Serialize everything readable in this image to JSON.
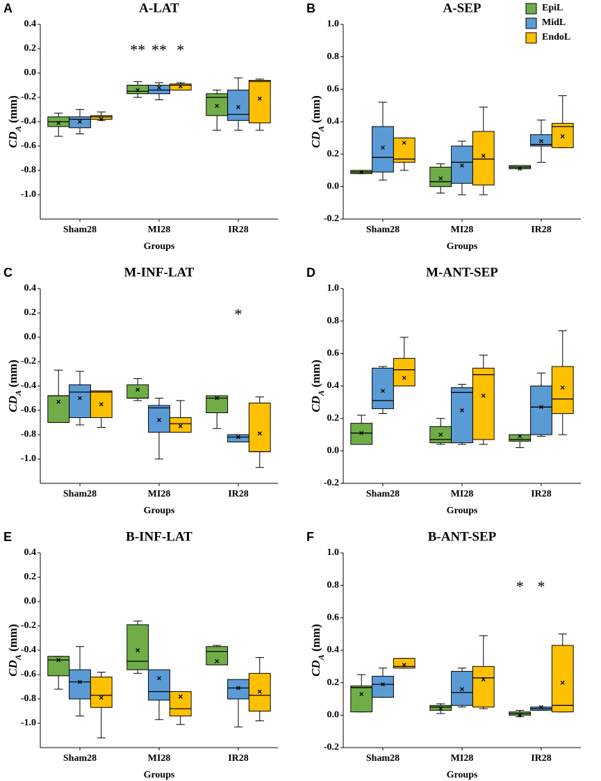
{
  "legend": [
    {
      "name": "EpiL",
      "color": "#70ad47"
    },
    {
      "name": "MidL",
      "color": "#5b9bd5"
    },
    {
      "name": "EndoL",
      "color": "#ffc000"
    }
  ],
  "chart_data": [
    {
      "type": "box",
      "letter": "A",
      "title": "A-LAT",
      "xlabel": "Groups",
      "ylabel": {
        "main": "CD",
        "sub": "A",
        "unit": " (mm)"
      },
      "categories": [
        "Sham28",
        "MI28",
        "IR28"
      ],
      "ylim": [
        -1.2,
        0.4
      ],
      "yticks": [
        {
          "value": -1,
          "label": "-1.0"
        },
        -0.8,
        -0.6,
        -0.4,
        -0.2,
        {
          "value": 0,
          "label": "0.0"
        },
        0.2,
        0.4
      ],
      "series": [
        {
          "values": [
            {
              "min": -0.52,
              "q1": -0.44,
              "median": -0.4,
              "q3": -0.36,
              "max": -0.33,
              "mean": -0.41
            },
            {
              "min": -0.2,
              "q1": -0.17,
              "median": -0.15,
              "q3": -0.1,
              "max": -0.07,
              "mean": -0.14
            },
            {
              "min": -0.47,
              "q1": -0.35,
              "median": -0.2,
              "q3": -0.17,
              "max": -0.14,
              "mean": -0.27
            }
          ]
        },
        {
          "values": [
            {
              "min": -0.5,
              "q1": -0.45,
              "median": -0.38,
              "q3": -0.36,
              "max": -0.3,
              "mean": -0.4
            },
            {
              "min": -0.22,
              "q1": -0.17,
              "median": -0.14,
              "q3": -0.1,
              "max": -0.08,
              "mean": -0.12
            },
            {
              "min": -0.47,
              "q1": -0.39,
              "median": -0.34,
              "q3": -0.14,
              "max": -0.04,
              "mean": -0.28
            }
          ]
        },
        {
          "values": [
            {
              "min": -0.39,
              "q1": -0.38,
              "median": -0.36,
              "q3": -0.35,
              "max": -0.32,
              "mean": -0.38
            },
            {
              "min": -0.14,
              "q1": -0.14,
              "median": -0.1,
              "q3": -0.09,
              "max": -0.08,
              "mean": -0.11
            },
            {
              "min": -0.47,
              "q1": -0.41,
              "median": -0.07,
              "q3": -0.06,
              "max": -0.05,
              "mean": -0.21
            }
          ]
        }
      ],
      "annotations": [
        {
          "text": "**",
          "category": "MI28",
          "series": "EpiL",
          "y": 0.2
        },
        {
          "text": "**",
          "category": "MI28",
          "series": "MidL",
          "y": 0.2
        },
        {
          "text": "*",
          "category": "MI28",
          "series": "EndoL",
          "y": 0.2
        }
      ]
    },
    {
      "type": "box",
      "letter": "B",
      "title": "A-SEP",
      "xlabel": "Groups",
      "ylabel": {
        "main": "CD",
        "sub": "A",
        "unit": " (mm)"
      },
      "categories": [
        "Sham28",
        "MI28",
        "IR28"
      ],
      "ylim": [
        -0.2,
        1.0
      ],
      "yticks": [
        -0.2,
        {
          "value": 0,
          "label": "0.0"
        },
        0.2,
        0.4,
        0.6,
        0.8,
        {
          "value": 1,
          "label": "1.0"
        }
      ],
      "series": [
        {
          "values": [
            {
              "min": 0.08,
              "q1": 0.08,
              "median": 0.09,
              "q3": 0.1,
              "max": 0.1,
              "mean": 0.09
            },
            {
              "min": -0.04,
              "q1": 0.0,
              "median": 0.03,
              "q3": 0.12,
              "max": 0.14,
              "mean": 0.05
            },
            {
              "min": 0.11,
              "q1": 0.11,
              "median": 0.12,
              "q3": 0.13,
              "max": 0.13,
              "mean": 0.11
            }
          ]
        },
        {
          "values": [
            {
              "min": 0.04,
              "q1": 0.09,
              "median": 0.18,
              "q3": 0.37,
              "max": 0.52,
              "mean": 0.24
            },
            {
              "min": -0.05,
              "q1": 0.02,
              "median": 0.15,
              "q3": 0.25,
              "max": 0.28,
              "mean": 0.13
            },
            {
              "min": 0.15,
              "q1": 0.25,
              "median": 0.26,
              "q3": 0.32,
              "max": 0.41,
              "mean": 0.28
            }
          ]
        },
        {
          "values": [
            {
              "min": 0.1,
              "q1": 0.15,
              "median": 0.17,
              "q3": 0.3,
              "max": 0.3,
              "mean": 0.27
            },
            {
              "min": -0.05,
              "q1": 0.01,
              "median": 0.17,
              "q3": 0.34,
              "max": 0.49,
              "mean": 0.19
            },
            {
              "min": 0.24,
              "q1": 0.24,
              "median": 0.37,
              "q3": 0.39,
              "max": 0.56,
              "mean": 0.31
            }
          ]
        }
      ],
      "annotations": []
    },
    {
      "type": "box",
      "letter": "C",
      "title": "M-INF-LAT",
      "xlabel": "Groups",
      "ylabel": {
        "main": "CD",
        "sub": "A",
        "unit": " (mm)"
      },
      "categories": [
        "Sham28",
        "MI28",
        "IR28"
      ],
      "ylim": [
        -1.2,
        0.4
      ],
      "yticks": [
        {
          "value": -1,
          "label": "-1.0"
        },
        -0.8,
        -0.6,
        -0.4,
        -0.2,
        {
          "value": 0,
          "label": "0.0"
        },
        0.2,
        0.4
      ],
      "series": [
        {
          "values": [
            {
              "min": -0.7,
              "q1": -0.7,
              "median": -0.48,
              "q3": -0.48,
              "max": -0.27,
              "mean": -0.53
            },
            {
              "min": -0.52,
              "q1": -0.5,
              "median": -0.5,
              "q3": -0.39,
              "max": -0.34,
              "mean": -0.43
            },
            {
              "min": -0.75,
              "q1": -0.62,
              "median": -0.5,
              "q3": -0.48,
              "max": -0.48,
              "mean": -0.5
            }
          ]
        },
        {
          "values": [
            {
              "min": -0.72,
              "q1": -0.66,
              "median": -0.45,
              "q3": -0.39,
              "max": -0.28,
              "mean": -0.5
            },
            {
              "min": -1.0,
              "q1": -0.78,
              "median": -0.58,
              "q3": -0.56,
              "max": -0.5,
              "mean": -0.68
            },
            {
              "min": -0.86,
              "q1": -0.86,
              "median": -0.82,
              "q3": -0.8,
              "max": -0.8,
              "mean": -0.82
            }
          ]
        },
        {
          "values": [
            {
              "min": -0.74,
              "q1": -0.66,
              "median": -0.45,
              "q3": -0.44,
              "max": -0.44,
              "mean": -0.55
            },
            {
              "min": -0.78,
              "q1": -0.78,
              "median": -0.71,
              "q3": -0.66,
              "max": -0.52,
              "mean": -0.73
            },
            {
              "min": -1.07,
              "q1": -0.94,
              "median": -0.94,
              "q3": -0.54,
              "max": -0.49,
              "mean": -0.79
            }
          ]
        }
      ],
      "annotations": [
        {
          "text": "*",
          "category": "IR28",
          "series": "MidL",
          "y": 0.2
        }
      ]
    },
    {
      "type": "box",
      "letter": "D",
      "title": "M-ANT-SEP",
      "xlabel": "Groups",
      "ylabel": {
        "main": "CD",
        "sub": "A",
        "unit": " (mm)"
      },
      "categories": [
        "Sham28",
        "MI28",
        "IR28"
      ],
      "ylim": [
        -0.2,
        1.0
      ],
      "yticks": [
        -0.2,
        {
          "value": 0,
          "label": "0.0"
        },
        0.2,
        0.4,
        0.6,
        0.8,
        {
          "value": 1,
          "label": "1.0"
        }
      ],
      "series": [
        {
          "values": [
            {
              "min": 0.04,
              "q1": 0.04,
              "median": 0.11,
              "q3": 0.17,
              "max": 0.22,
              "mean": 0.11
            },
            {
              "min": 0.04,
              "q1": 0.05,
              "median": 0.07,
              "q3": 0.15,
              "max": 0.2,
              "mean": 0.1
            },
            {
              "min": 0.02,
              "q1": 0.06,
              "median": 0.07,
              "q3": 0.1,
              "max": 0.1,
              "mean": 0.09
            }
          ]
        },
        {
          "values": [
            {
              "min": 0.23,
              "q1": 0.26,
              "median": 0.31,
              "q3": 0.51,
              "max": 0.52,
              "mean": 0.37
            },
            {
              "min": 0.04,
              "q1": 0.05,
              "median": 0.36,
              "q3": 0.39,
              "max": 0.41,
              "mean": 0.25
            },
            {
              "min": 0.09,
              "q1": 0.1,
              "median": 0.27,
              "q3": 0.4,
              "max": 0.48,
              "mean": 0.27
            }
          ]
        },
        {
          "values": [
            {
              "min": 0.4,
              "q1": 0.4,
              "median": 0.5,
              "q3": 0.57,
              "max": 0.7,
              "mean": 0.45
            },
            {
              "min": 0.04,
              "q1": 0.07,
              "median": 0.47,
              "q3": 0.51,
              "max": 0.59,
              "mean": 0.34
            },
            {
              "min": 0.1,
              "q1": 0.23,
              "median": 0.32,
              "q3": 0.52,
              "max": 0.74,
              "mean": 0.39
            }
          ]
        }
      ],
      "annotations": []
    },
    {
      "type": "box",
      "letter": "E",
      "title": "B-INF-LAT",
      "xlabel": "Groups",
      "ylabel": {
        "main": "CD",
        "sub": "A",
        "unit": " (mm)"
      },
      "categories": [
        "Sham28",
        "MI28",
        "IR28"
      ],
      "ylim": [
        -1.2,
        0.4
      ],
      "yticks": [
        {
          "value": -1,
          "label": "-1.0"
        },
        -0.8,
        -0.6,
        -0.4,
        -0.2,
        {
          "value": 0,
          "label": "0.0"
        },
        0.2,
        0.4
      ],
      "series": [
        {
          "values": [
            {
              "min": -0.72,
              "q1": -0.61,
              "median": -0.48,
              "q3": -0.45,
              "max": -0.45,
              "mean": -0.48
            },
            {
              "min": -0.59,
              "q1": -0.56,
              "median": -0.49,
              "q3": -0.19,
              "max": -0.16,
              "mean": -0.4
            },
            {
              "min": -0.52,
              "q1": -0.52,
              "median": -0.41,
              "q3": -0.37,
              "max": -0.36,
              "mean": -0.49
            }
          ]
        },
        {
          "values": [
            {
              "min": -0.94,
              "q1": -0.8,
              "median": -0.66,
              "q3": -0.56,
              "max": -0.37,
              "mean": -0.66
            },
            {
              "min": -0.97,
              "q1": -0.81,
              "median": -0.74,
              "q3": -0.56,
              "max": -0.56,
              "mean": -0.63
            },
            {
              "min": -1.03,
              "q1": -0.8,
              "median": -0.71,
              "q3": -0.64,
              "max": -0.64,
              "mean": -0.71
            }
          ]
        },
        {
          "values": [
            {
              "min": -1.12,
              "q1": -0.87,
              "median": -0.77,
              "q3": -0.62,
              "max": -0.58,
              "mean": -0.79
            },
            {
              "min": -1.01,
              "q1": -0.94,
              "median": -0.88,
              "q3": -0.74,
              "max": -0.74,
              "mean": -0.78
            },
            {
              "min": -0.98,
              "q1": -0.9,
              "median": -0.77,
              "q3": -0.59,
              "max": -0.46,
              "mean": -0.74
            }
          ]
        }
      ],
      "annotations": []
    },
    {
      "type": "box",
      "letter": "F",
      "title": "B-ANT-SEP",
      "xlabel": "Groups",
      "ylabel": {
        "main": "CD",
        "sub": "A",
        "unit": " (mm)"
      },
      "categories": [
        "Sham28",
        "MI28",
        "IR28"
      ],
      "ylim": [
        -0.2,
        1.0
      ],
      "yticks": [
        -0.2,
        {
          "value": 0,
          "label": "0.0"
        },
        0.2,
        0.4,
        0.6,
        0.8,
        {
          "value": 1,
          "label": "1.0"
        }
      ],
      "series": [
        {
          "values": [
            {
              "min": 0.02,
              "q1": 0.02,
              "median": 0.17,
              "q3": 0.18,
              "max": 0.25,
              "mean": 0.13
            },
            {
              "min": 0.01,
              "q1": 0.03,
              "median": 0.05,
              "q3": 0.06,
              "max": 0.07,
              "mean": 0.04
            },
            {
              "min": -0.01,
              "q1": 0.0,
              "median": 0.01,
              "q3": 0.02,
              "max": 0.03,
              "mean": 0.0
            }
          ]
        },
        {
          "values": [
            {
              "min": 0.11,
              "q1": 0.11,
              "median": 0.19,
              "q3": 0.24,
              "max": 0.29,
              "mean": 0.19
            },
            {
              "min": 0.05,
              "q1": 0.06,
              "median": 0.14,
              "q3": 0.27,
              "max": 0.29,
              "mean": 0.16
            },
            {
              "min": 0.03,
              "q1": 0.03,
              "median": 0.04,
              "q3": 0.05,
              "max": 0.05,
              "mean": 0.05
            }
          ]
        },
        {
          "values": [
            {
              "min": 0.29,
              "q1": 0.29,
              "median": 0.3,
              "q3": 0.35,
              "max": 0.35,
              "mean": 0.31
            },
            {
              "min": 0.04,
              "q1": 0.05,
              "median": 0.23,
              "q3": 0.3,
              "max": 0.49,
              "mean": 0.22
            },
            {
              "min": 0.02,
              "q1": 0.02,
              "median": 0.06,
              "q3": 0.43,
              "max": 0.5,
              "mean": 0.2
            }
          ]
        }
      ],
      "annotations": [
        {
          "text": "*",
          "category": "IR28",
          "series": "EpiL",
          "y": 0.8
        },
        {
          "text": "*",
          "category": "IR28",
          "series": "MidL",
          "y": 0.8
        }
      ]
    }
  ]
}
